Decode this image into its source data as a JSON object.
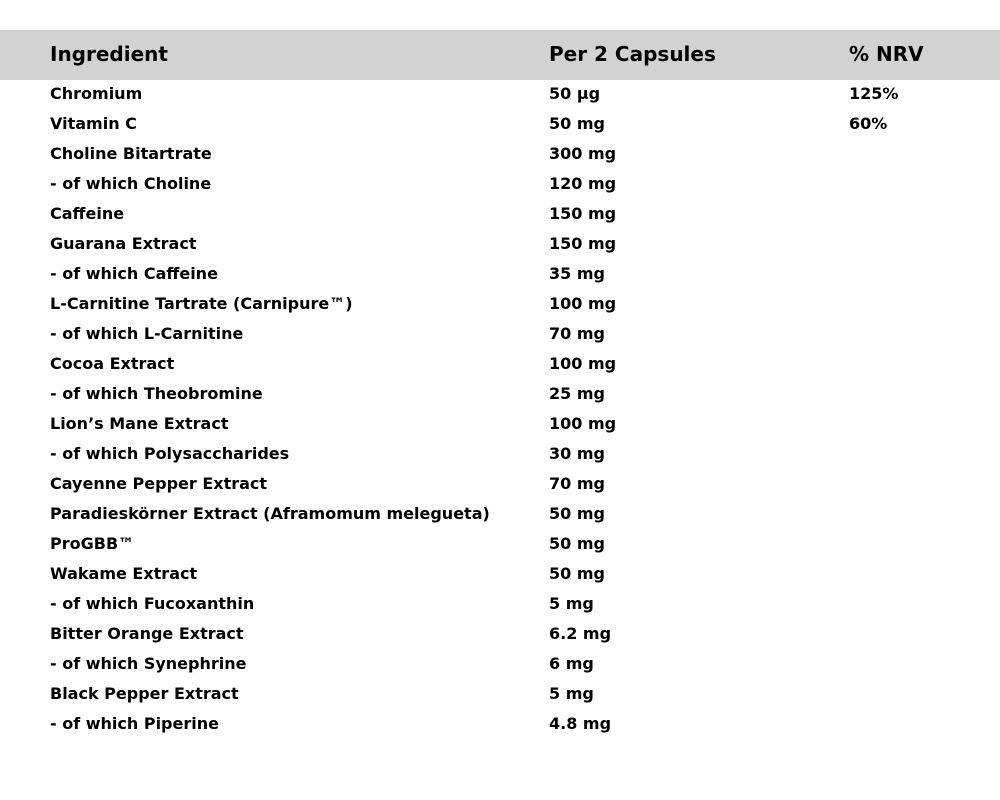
{
  "colors": {
    "page_bg": "#ffffff",
    "header_bg": "#d2d2d2",
    "text": "#000000"
  },
  "header": {
    "columns": [
      {
        "label": "Ingredient"
      },
      {
        "label": "Per 2 Capsules"
      },
      {
        "label": "% NRV"
      }
    ]
  },
  "rows": [
    {
      "ingredient": "Chromium",
      "amount": "50 µg",
      "nrv": "125%"
    },
    {
      "ingredient": "Vitamin C",
      "amount": "50 mg",
      "nrv": "60%"
    },
    {
      "ingredient": "Choline Bitartrate",
      "amount": "300 mg",
      "nrv": ""
    },
    {
      "ingredient": "- of which Choline",
      "amount": "120 mg",
      "nrv": ""
    },
    {
      "ingredient": "Caffeine",
      "amount": "150 mg",
      "nrv": ""
    },
    {
      "ingredient": "Guarana Extract",
      "amount": "150 mg",
      "nrv": ""
    },
    {
      "ingredient": "- of which Caffeine",
      "amount": "35 mg",
      "nrv": ""
    },
    {
      "ingredient": "L-Carnitine Tartrate (Carnipure™)",
      "amount": "100 mg",
      "nrv": ""
    },
    {
      "ingredient": "- of which L-Carnitine",
      "amount": "70 mg",
      "nrv": ""
    },
    {
      "ingredient": "Cocoa Extract",
      "amount": "100 mg",
      "nrv": ""
    },
    {
      "ingredient": "- of which Theobromine",
      "amount": "25 mg",
      "nrv": ""
    },
    {
      "ingredient": "Lion’s Mane Extract",
      "amount": "100 mg",
      "nrv": ""
    },
    {
      "ingredient": "- of which Polysaccharides",
      "amount": "30 mg",
      "nrv": ""
    },
    {
      "ingredient": "Cayenne Pepper Extract",
      "amount": "70 mg",
      "nrv": ""
    },
    {
      "ingredient": "Paradieskörner Extract (Aframomum melegueta)",
      "amount": "50 mg",
      "nrv": ""
    },
    {
      "ingredient": "ProGBB™",
      "amount": "50 mg",
      "nrv": ""
    },
    {
      "ingredient": "Wakame Extract",
      "amount": "50 mg",
      "nrv": ""
    },
    {
      "ingredient": "- of which Fucoxanthin",
      "amount": "5 mg",
      "nrv": ""
    },
    {
      "ingredient": "Bitter Orange Extract",
      "amount": "6.2 mg",
      "nrv": ""
    },
    {
      "ingredient": "- of which Synephrine",
      "amount": "6 mg",
      "nrv": ""
    },
    {
      "ingredient": "Black Pepper Extract",
      "amount": "5 mg",
      "nrv": ""
    },
    {
      "ingredient": "- of which Piperine",
      "amount": "4.8 mg",
      "nrv": ""
    }
  ]
}
